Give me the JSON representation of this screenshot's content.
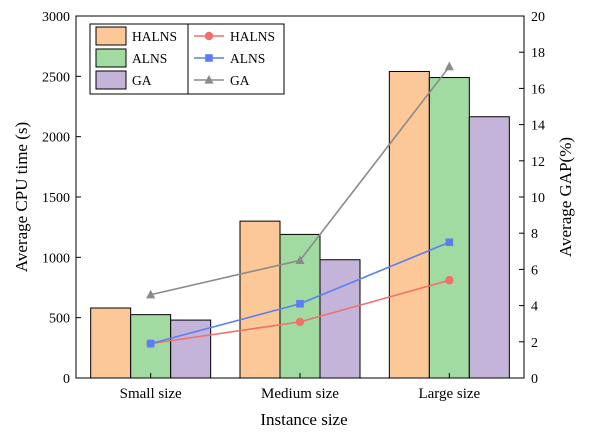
{
  "chart_data": {
    "type": "bar+line",
    "categories": [
      "Small size",
      "Medium size",
      "Large size"
    ],
    "xlabel": "Instance size",
    "ylabel_left": "Average CPU time (s)",
    "ylabel_right": "Average GAP(%)",
    "ylim_left": [
      0,
      3000
    ],
    "yticks_left": [
      0,
      500,
      1000,
      1500,
      2000,
      2500,
      3000
    ],
    "ylim_right": [
      0,
      20
    ],
    "yticks_right": [
      0,
      2,
      4,
      6,
      8,
      10,
      12,
      14,
      16,
      18,
      20
    ],
    "bar_series": [
      {
        "name": "HALNS",
        "axis": "left",
        "color": "#fcc897",
        "values": [
          580,
          1300,
          2540
        ]
      },
      {
        "name": "ALNS",
        "axis": "left",
        "color": "#a1dba1",
        "values": [
          525,
          1190,
          2490
        ]
      },
      {
        "name": "GA",
        "axis": "left",
        "color": "#c4b4d9",
        "values": [
          480,
          980,
          2165
        ]
      }
    ],
    "line_series": [
      {
        "name": "HALNS",
        "axis": "right",
        "color": "#f0706a",
        "marker": "circle",
        "values": [
          1.9,
          3.1,
          5.4
        ]
      },
      {
        "name": "ALNS",
        "axis": "right",
        "color": "#5b7ff0",
        "marker": "square",
        "values": [
          1.9,
          4.1,
          7.5
        ]
      },
      {
        "name": "GA",
        "axis": "right",
        "color": "#8a8a8a",
        "marker": "triangle",
        "values": [
          4.6,
          6.5,
          17.2
        ]
      }
    ],
    "legend_placement": "top-left",
    "grid": false
  }
}
